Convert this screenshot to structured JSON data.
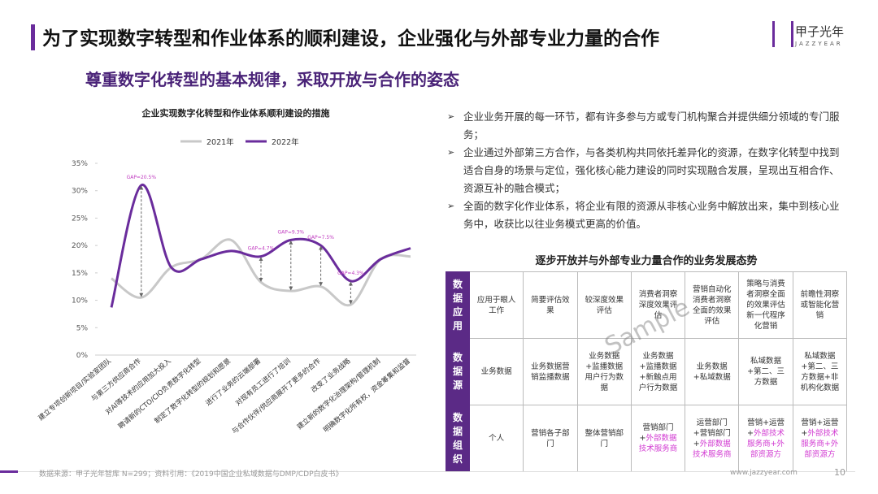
{
  "header": {
    "title": "为了实现数字转型和作业体系的顺利建设，企业强化与外部专业力量的合作",
    "subtitle": "尊重数字化转型的基本规律，采取开放与合作的姿态",
    "logo": "甲子光年",
    "logo_sub": "JAZZYEAR"
  },
  "chart_data": {
    "type": "line",
    "title": "企业实现数字化转型和作业体系顺利建设的措施",
    "categories": [
      "建立专项创新项目/实验室团队",
      "与第三方供应商合作",
      "对AI等技术的应用加大投入",
      "聘请新的CTO/CIO负责数字化转型",
      "制定了数字化转型的规划和愿景",
      "进行了业务的云端部署",
      "对现有员工进行了培训",
      "与合作伙伴/供应商展开了更多的合作",
      "改变了业务战略",
      "建立新的数字化治理架构/管理机制",
      "明确数字化所有权，资金筹集和监督"
    ],
    "series": [
      {
        "name": "2021年",
        "color": "#c8c8c8",
        "values": [
          14,
          10.5,
          16,
          17.5,
          21,
          13.3,
          11.7,
          12.5,
          9.2,
          17.5,
          18
        ]
      },
      {
        "name": "2022年",
        "color": "#6a2c9c",
        "values": [
          8.7,
          31,
          16,
          17.5,
          19,
          18,
          21,
          20,
          13.5,
          17.5,
          19.5
        ]
      }
    ],
    "annotations": [
      "GAP=20.5%",
      "GAP=4.7%",
      "GAP=9.3%",
      "GAP=7.5%",
      "GAP=4.3%"
    ],
    "ylim": [
      0,
      35
    ],
    "yticks": [
      {
        "value": 0,
        "label": "0%"
      },
      {
        "value": 5,
        "label": "5%"
      },
      {
        "value": 10,
        "label": "10%"
      },
      {
        "value": 15,
        "label": "15%"
      },
      {
        "value": 20,
        "label": "20%"
      },
      {
        "value": 25,
        "label": "25%"
      },
      {
        "value": 30,
        "label": "30%"
      },
      {
        "value": 35,
        "label": "35%"
      }
    ],
    "legend": "top"
  },
  "bullets": [
    "企业业务开展的每一环节，都有许多参与方或专门机构聚合并提供细分领域的专门服务；",
    "企业通过外部第三方合作，与各类机构共同依托差异化的资源，在数字化转型中找到适合自身的场景与定位，强化核心能力建设的同时实现融合发展，呈现出互相合作、资源互补的融合模式；",
    "全面的数字化作业体系，将企业有限的资源从非核心业务中解放出来，集中到核心业务中，收获比以往业务模式更高的价值。"
  ],
  "table": {
    "title": "逐步开放并与外部专业力量合作的业务发展态势",
    "watermark": "Sample",
    "rows": [
      {
        "header": "数据应用",
        "cells": [
          "应用于眼人工作",
          "简要评估效果",
          "较深度效果评估",
          "消费者洞察深度效果评估",
          "营销自动化消费者洞察全面的效果评估",
          "策略与消费者洞察全面的效果评估新一代程序化营销",
          "前瞻性洞察或智能化营销"
        ]
      },
      {
        "header": "数据源",
        "cells": [
          "业务数据",
          "业务数据营销监播数据",
          "业务数据+监播数据用户行为数据",
          "业务数据+监播数据+新触点用户行为数据",
          "业务数据+私域数据",
          "私域数据+第二、三方数据",
          "私域数据+第二、三方数据+非机构化数据"
        ]
      },
      {
        "header": "数据组织",
        "cells": [
          "个人",
          "营销各子部门",
          "整体营销部门",
          [
            "营销部门+",
            "外部数据技术服务商"
          ],
          [
            "运营部门+营销部门+",
            "外部数据技术服务商"
          ],
          [
            "营销+运营+",
            "外部技术服务商+外部资源方"
          ],
          [
            "营销+运营+",
            "外部技术服务商+外部资源方"
          ]
        ]
      }
    ]
  },
  "footer": {
    "source": "数据来源：甲子光年智库 N=299；资料引用：《2019中国企业私域数据与DMP/CDP白皮书》",
    "website": "www.jazzyear.com",
    "page": "10"
  }
}
